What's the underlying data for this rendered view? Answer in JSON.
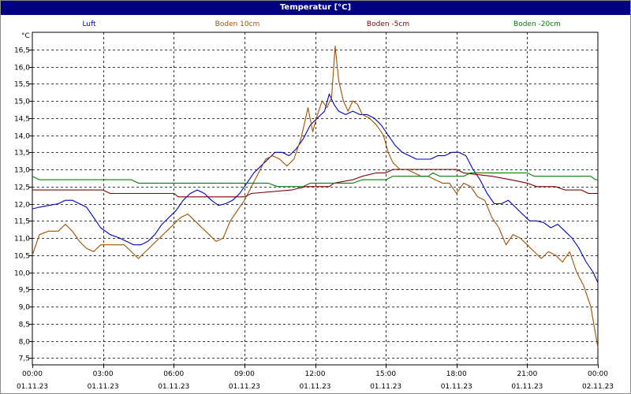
{
  "window": {
    "title": "Temperatur [°C]"
  },
  "chart_data": {
    "type": "line",
    "title": "Temperatur [°C]",
    "ylabel": "°C",
    "xlabel": "",
    "ylim": [
      7.3,
      17.0
    ],
    "yticks": [
      7.5,
      8.0,
      8.5,
      9.0,
      9.5,
      10.0,
      10.5,
      11.0,
      11.5,
      12.0,
      12.5,
      13.0,
      13.5,
      14.0,
      14.5,
      15.0,
      15.5,
      16.0,
      16.5
    ],
    "ytick_labels": [
      "7,5",
      "8,0",
      "8,5",
      "9,0",
      "9,5",
      "10,0",
      "10,5",
      "11,0",
      "11,5",
      "12,0",
      "12,5",
      "13,0",
      "13,5",
      "14,0",
      "14,5",
      "15,0",
      "15,5",
      "16,0",
      "16,5"
    ],
    "xlim": [
      0,
      24
    ],
    "xticks": [
      0,
      3,
      6,
      9,
      12,
      15,
      18,
      21,
      24
    ],
    "xtick_labels": [
      [
        "00:00",
        "01.11.23"
      ],
      [
        "03:00",
        "01.11.23"
      ],
      [
        "06:00",
        "01.11.23"
      ],
      [
        "09:00",
        "01.11.23"
      ],
      [
        "12:00",
        "01.11.23"
      ],
      [
        "15:00",
        "01.11.23"
      ],
      [
        "18:00",
        "01.11.23"
      ],
      [
        "21:00",
        "01.11.23"
      ],
      [
        "00:00",
        "02.11.23"
      ]
    ],
    "grid": true,
    "legend": "top",
    "series": [
      {
        "name": "Luft",
        "color": "#0000c0",
        "points": [
          [
            0,
            11.85
          ],
          [
            0.3,
            11.9
          ],
          [
            0.7,
            11.95
          ],
          [
            1.1,
            12.0
          ],
          [
            1.4,
            12.1
          ],
          [
            1.7,
            12.1
          ],
          [
            2.0,
            12.0
          ],
          [
            2.3,
            11.9
          ],
          [
            2.6,
            11.6
          ],
          [
            2.9,
            11.3
          ],
          [
            3.3,
            11.1
          ],
          [
            3.7,
            11.0
          ],
          [
            4.0,
            10.9
          ],
          [
            4.3,
            10.8
          ],
          [
            4.6,
            10.8
          ],
          [
            4.9,
            10.9
          ],
          [
            5.2,
            11.1
          ],
          [
            5.5,
            11.4
          ],
          [
            5.8,
            11.6
          ],
          [
            6.1,
            11.8
          ],
          [
            6.4,
            12.1
          ],
          [
            6.7,
            12.3
          ],
          [
            7.0,
            12.4
          ],
          [
            7.3,
            12.3
          ],
          [
            7.6,
            12.1
          ],
          [
            7.9,
            11.95
          ],
          [
            8.2,
            12.0
          ],
          [
            8.5,
            12.1
          ],
          [
            8.8,
            12.3
          ],
          [
            9.1,
            12.6
          ],
          [
            9.4,
            12.9
          ],
          [
            9.7,
            13.1
          ],
          [
            10.0,
            13.3
          ],
          [
            10.3,
            13.5
          ],
          [
            10.6,
            13.5
          ],
          [
            10.9,
            13.4
          ],
          [
            11.2,
            13.6
          ],
          [
            11.5,
            13.9
          ],
          [
            11.8,
            14.3
          ],
          [
            12.1,
            14.5
          ],
          [
            12.4,
            14.7
          ],
          [
            12.6,
            15.2
          ],
          [
            12.8,
            14.9
          ],
          [
            13.0,
            14.7
          ],
          [
            13.3,
            14.6
          ],
          [
            13.6,
            14.7
          ],
          [
            13.9,
            14.6
          ],
          [
            14.2,
            14.6
          ],
          [
            14.5,
            14.5
          ],
          [
            14.8,
            14.3
          ],
          [
            15.1,
            14.0
          ],
          [
            15.4,
            13.7
          ],
          [
            15.7,
            13.5
          ],
          [
            16.0,
            13.4
          ],
          [
            16.3,
            13.3
          ],
          [
            16.6,
            13.3
          ],
          [
            16.9,
            13.3
          ],
          [
            17.2,
            13.4
          ],
          [
            17.5,
            13.4
          ],
          [
            17.8,
            13.5
          ],
          [
            18.1,
            13.5
          ],
          [
            18.4,
            13.4
          ],
          [
            18.7,
            13.0
          ],
          [
            19.0,
            12.7
          ],
          [
            19.3,
            12.3
          ],
          [
            19.6,
            12.0
          ],
          [
            19.9,
            12.0
          ],
          [
            20.2,
            12.1
          ],
          [
            20.5,
            11.9
          ],
          [
            20.8,
            11.7
          ],
          [
            21.1,
            11.5
          ],
          [
            21.4,
            11.5
          ],
          [
            21.7,
            11.45
          ],
          [
            22.0,
            11.3
          ],
          [
            22.3,
            11.4
          ],
          [
            22.6,
            11.2
          ],
          [
            22.9,
            11.0
          ],
          [
            23.2,
            10.7
          ],
          [
            23.5,
            10.3
          ],
          [
            23.8,
            10.0
          ],
          [
            24.0,
            9.7
          ]
        ]
      },
      {
        "name": "Boden 10cm",
        "color": "#a05000",
        "points": [
          [
            0,
            10.5
          ],
          [
            0.3,
            11.1
          ],
          [
            0.7,
            11.2
          ],
          [
            1.1,
            11.2
          ],
          [
            1.4,
            11.4
          ],
          [
            1.7,
            11.2
          ],
          [
            2.0,
            10.9
          ],
          [
            2.3,
            10.7
          ],
          [
            2.6,
            10.6
          ],
          [
            2.9,
            10.8
          ],
          [
            3.2,
            10.8
          ],
          [
            3.6,
            10.8
          ],
          [
            3.9,
            10.8
          ],
          [
            4.2,
            10.6
          ],
          [
            4.5,
            10.4
          ],
          [
            4.8,
            10.6
          ],
          [
            5.1,
            10.8
          ],
          [
            5.4,
            11.0
          ],
          [
            5.7,
            11.2
          ],
          [
            6.0,
            11.4
          ],
          [
            6.3,
            11.6
          ],
          [
            6.6,
            11.7
          ],
          [
            6.9,
            11.5
          ],
          [
            7.2,
            11.3
          ],
          [
            7.5,
            11.1
          ],
          [
            7.8,
            10.9
          ],
          [
            8.1,
            11.0
          ],
          [
            8.4,
            11.5
          ],
          [
            8.7,
            11.8
          ],
          [
            9.0,
            12.1
          ],
          [
            9.3,
            12.5
          ],
          [
            9.6,
            12.9
          ],
          [
            9.9,
            13.3
          ],
          [
            10.2,
            13.4
          ],
          [
            10.5,
            13.3
          ],
          [
            10.8,
            13.1
          ],
          [
            11.1,
            13.3
          ],
          [
            11.4,
            13.9
          ],
          [
            11.7,
            14.8
          ],
          [
            11.9,
            14.1
          ],
          [
            12.1,
            14.6
          ],
          [
            12.3,
            15.0
          ],
          [
            12.5,
            14.8
          ],
          [
            12.7,
            15.1
          ],
          [
            12.85,
            16.6
          ],
          [
            13.0,
            15.6
          ],
          [
            13.2,
            15.0
          ],
          [
            13.4,
            14.7
          ],
          [
            13.6,
            15.0
          ],
          [
            13.8,
            14.9
          ],
          [
            14.0,
            14.6
          ],
          [
            14.3,
            14.5
          ],
          [
            14.6,
            14.3
          ],
          [
            14.9,
            14.0
          ],
          [
            15.1,
            13.5
          ],
          [
            15.3,
            13.2
          ],
          [
            15.6,
            13.0
          ],
          [
            15.9,
            13.0
          ],
          [
            16.2,
            12.9
          ],
          [
            16.5,
            12.8
          ],
          [
            16.8,
            12.8
          ],
          [
            17.1,
            12.7
          ],
          [
            17.4,
            12.6
          ],
          [
            17.7,
            12.6
          ],
          [
            18.0,
            12.3
          ],
          [
            18.3,
            12.6
          ],
          [
            18.6,
            12.5
          ],
          [
            18.9,
            12.2
          ],
          [
            19.2,
            12.1
          ],
          [
            19.5,
            11.6
          ],
          [
            19.8,
            11.3
          ],
          [
            20.1,
            10.8
          ],
          [
            20.4,
            11.1
          ],
          [
            20.7,
            11.0
          ],
          [
            21.0,
            10.8
          ],
          [
            21.3,
            10.6
          ],
          [
            21.6,
            10.4
          ],
          [
            21.9,
            10.6
          ],
          [
            22.2,
            10.5
          ],
          [
            22.5,
            10.3
          ],
          [
            22.8,
            10.6
          ],
          [
            23.1,
            10.0
          ],
          [
            23.4,
            9.6
          ],
          [
            23.7,
            9.0
          ],
          [
            23.9,
            8.2
          ],
          [
            24.0,
            7.8
          ]
        ]
      },
      {
        "name": "Boden -5cm",
        "color": "#800000",
        "points": [
          [
            0,
            12.4
          ],
          [
            3.0,
            12.4
          ],
          [
            3.3,
            12.3
          ],
          [
            6.0,
            12.3
          ],
          [
            6.2,
            12.2
          ],
          [
            9.0,
            12.2
          ],
          [
            9.3,
            12.3
          ],
          [
            11.0,
            12.4
          ],
          [
            11.6,
            12.5
          ],
          [
            12.6,
            12.5
          ],
          [
            12.8,
            12.6
          ],
          [
            13.6,
            12.7
          ],
          [
            14.0,
            12.8
          ],
          [
            14.6,
            12.9
          ],
          [
            15.0,
            12.9
          ],
          [
            15.3,
            13.0
          ],
          [
            18.0,
            13.0
          ],
          [
            18.3,
            12.9
          ],
          [
            19.5,
            12.8
          ],
          [
            20.3,
            12.7
          ],
          [
            21.0,
            12.6
          ],
          [
            21.4,
            12.5
          ],
          [
            22.2,
            12.5
          ],
          [
            22.6,
            12.4
          ],
          [
            23.3,
            12.4
          ],
          [
            23.6,
            12.3
          ],
          [
            24.0,
            12.3
          ]
        ]
      },
      {
        "name": "Boden -20cm",
        "color": "#008000",
        "points": [
          [
            0,
            12.8
          ],
          [
            0.3,
            12.7
          ],
          [
            4.2,
            12.7
          ],
          [
            4.5,
            12.6
          ],
          [
            10.0,
            12.6
          ],
          [
            10.4,
            12.5
          ],
          [
            11.5,
            12.5
          ],
          [
            11.8,
            12.6
          ],
          [
            13.6,
            12.6
          ],
          [
            14.0,
            12.7
          ],
          [
            15.0,
            12.7
          ],
          [
            15.3,
            12.8
          ],
          [
            16.8,
            12.8
          ],
          [
            17.0,
            12.9
          ],
          [
            17.3,
            12.8
          ],
          [
            18.3,
            12.8
          ],
          [
            18.6,
            12.9
          ],
          [
            21.0,
            12.9
          ],
          [
            21.3,
            12.8
          ],
          [
            23.7,
            12.8
          ],
          [
            23.9,
            12.7
          ],
          [
            24.0,
            12.7
          ]
        ]
      }
    ]
  }
}
